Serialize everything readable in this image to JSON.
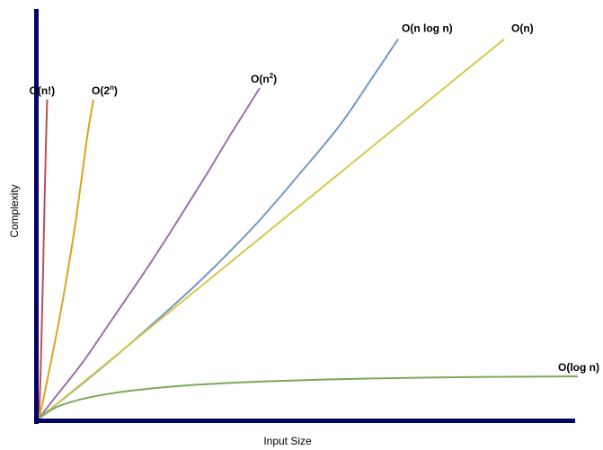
{
  "chart_data": {
    "type": "line",
    "title": "",
    "xlabel": "Input Size",
    "ylabel": "Complexity",
    "grid": false,
    "legend": "none",
    "axis_color": "#000066",
    "series": [
      {
        "name": "O(n!)",
        "label_base": "O(n!)",
        "label_sup": "",
        "label_close": "",
        "color": "#c0504d",
        "x": [
          0,
          0.8,
          1.8,
          3.2,
          5.0,
          6.9,
          8.4,
          9.5
        ],
        "y": [
          0,
          4,
          12,
          28,
          52,
          80,
          99,
          111
        ]
      },
      {
        "name": "O(2^n)",
        "label_base": "O(2",
        "label_sup": "n",
        "label_close": ")",
        "color": "#daa520",
        "x": [
          0,
          4,
          10,
          19,
          29,
          39,
          48,
          55,
          61
        ],
        "y": [
          0,
          5,
          14,
          28,
          45,
          64,
          84,
          100,
          111
        ]
      },
      {
        "name": "O(n^2)",
        "label_base": "O(n",
        "label_sup": "2",
        "label_close": ")",
        "color": "#9b72aa",
        "x": [
          0,
          20,
          50,
          85,
          120,
          155,
          185,
          210,
          230,
          246
        ],
        "y": [
          0,
          8,
          20,
          36,
          52,
          69,
          84,
          97,
          107,
          115
        ]
      },
      {
        "name": "O(n log n)",
        "label_base": "O(n log n)",
        "label_sup": "",
        "label_close": "",
        "color": "#7399c6",
        "x": [
          0,
          60,
          120,
          180,
          240,
          290,
          335,
          370,
          400
        ],
        "y": [
          0,
          15,
          31,
          48,
          67,
          85,
          102,
          118,
          132
        ]
      },
      {
        "name": "O(n)",
        "label_base": "O(n)",
        "label_sup": "",
        "label_close": "",
        "color": "#d6c84c",
        "x": [
          0,
          518
        ],
        "y": [
          0,
          132
        ]
      },
      {
        "name": "O(log n)",
        "label_base": "O(log n)",
        "label_sup": "",
        "label_close": "",
        "color": "#7ba85a",
        "x": [
          0,
          15,
          30,
          60,
          100,
          150,
          200,
          260,
          320,
          380,
          440,
          500,
          560,
          600
        ],
        "y": [
          0,
          3.2,
          5.2,
          7.6,
          9.6,
          11.2,
          12.2,
          13.0,
          13.6,
          14.0,
          14.3,
          14.5,
          14.6,
          14.7
        ]
      }
    ]
  }
}
